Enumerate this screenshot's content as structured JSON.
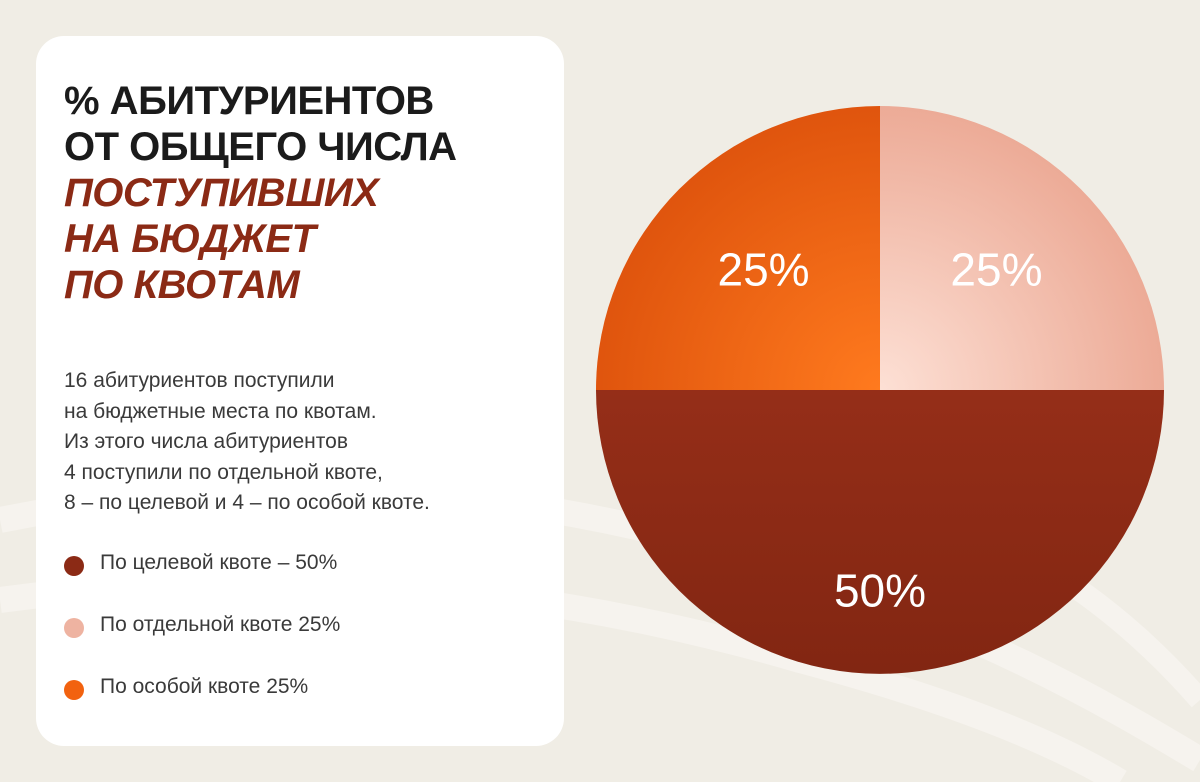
{
  "title": {
    "lines_dark": [
      "% АБИТУРИЕНТОВ",
      "ОТ ОБЩЕГО ЧИСЛА"
    ],
    "lines_accent": [
      "ПОСТУПИВШИХ",
      "НА БЮДЖЕТ",
      "ПО КВОТАМ"
    ]
  },
  "description": [
    "16 абитуриентов поступили",
    "на бюджетные места по квотам.",
    "Из этого числа абитуриентов",
    "4 поступили по отдельной квоте,",
    "8 –  по целевой и 4 – по особой квоте."
  ],
  "legend": [
    {
      "label": "По целевой квоте – 50%",
      "color": "#8b2a15"
    },
    {
      "label": "По отдельной квоте 25%",
      "color": "#eeb3a1"
    },
    {
      "label": "По особой квоте 25%",
      "color": "#f2620f"
    }
  ],
  "chart_data": {
    "type": "pie",
    "title": "% АБИТУРИЕНТОВ ОТ ОБЩЕГО ЧИСЛА ПОСТУПИВШИХ НА БЮДЖЕТ ПО КВОТАМ",
    "slices": [
      {
        "name": "По отдельной квоте",
        "value": 25,
        "label": "25%",
        "color": "#eeb3a1"
      },
      {
        "name": "По целевой квоте",
        "value": 50,
        "label": "50%",
        "color": "#8b2a15"
      },
      {
        "name": "По особой квоте",
        "value": 25,
        "label": "25%",
        "color": "#f2620f"
      }
    ],
    "start_angle_deg": 0,
    "direction": "clockwise"
  }
}
